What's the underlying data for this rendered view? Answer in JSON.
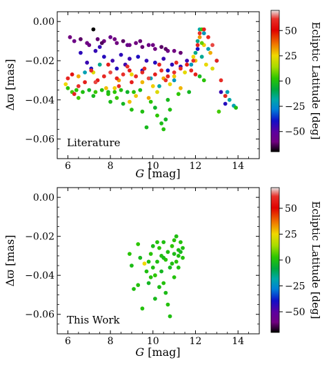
{
  "chart_data": [
    {
      "type": "scatter",
      "panel_label": "Literature",
      "xlabel": "G [mag]",
      "ylabel": "Δϖ [mas]",
      "xlim": [
        5.5,
        15
      ],
      "ylim": [
        -0.07,
        0.005
      ],
      "xticks": [
        6,
        8,
        10,
        12,
        14
      ],
      "yticks": [
        -0.06,
        -0.04,
        -0.02,
        0.0
      ],
      "xtick_labels": [
        "6",
        "8",
        "10",
        "12",
        "14"
      ],
      "ytick_labels": [
        "−0.06",
        "−0.04",
        "−0.02",
        "0.00"
      ],
      "colorbar": {
        "label": "Ecliptic Latitude [deg]",
        "range": [
          -70,
          70
        ],
        "ticks": [
          50,
          25,
          0,
          -25,
          -50
        ],
        "tick_labels": [
          "50",
          "25",
          "0",
          "−25",
          "−50"
        ]
      },
      "points": [
        [
          6.1,
          -0.008,
          -60
        ],
        [
          6.3,
          -0.01,
          -58
        ],
        [
          6.6,
          -0.009,
          -62
        ],
        [
          6.9,
          -0.011,
          -59
        ],
        [
          7.2,
          -0.004,
          -70
        ],
        [
          7.4,
          -0.009,
          -61
        ],
        [
          7.7,
          -0.01,
          -60
        ],
        [
          8.0,
          -0.008,
          -57
        ],
        [
          8.3,
          -0.011,
          -60
        ],
        [
          8.6,
          -0.01,
          -62
        ],
        [
          8.9,
          -0.012,
          -59
        ],
        [
          9.2,
          -0.011,
          -60
        ],
        [
          9.5,
          -0.013,
          -61
        ],
        [
          9.8,
          -0.012,
          -58
        ],
        [
          10.1,
          -0.014,
          -60
        ],
        [
          10.4,
          -0.013,
          -62
        ],
        [
          10.7,
          -0.015,
          -59
        ],
        [
          11.0,
          -0.015,
          -60
        ],
        [
          11.3,
          -0.016,
          -61
        ],
        [
          7.0,
          -0.012,
          -58
        ],
        [
          7.6,
          -0.011,
          -63
        ],
        [
          8.2,
          -0.009,
          -60
        ],
        [
          8.8,
          -0.012,
          -57
        ],
        [
          9.4,
          -0.01,
          -61
        ],
        [
          10.0,
          -0.012,
          -59
        ],
        [
          10.6,
          -0.014,
          -62
        ],
        [
          6.6,
          -0.016,
          -43
        ],
        [
          6.9,
          -0.021,
          -45
        ],
        [
          7.3,
          -0.015,
          -44
        ],
        [
          7.7,
          -0.018,
          -42
        ],
        [
          8.1,
          -0.02,
          -46
        ],
        [
          8.5,
          -0.017,
          -43
        ],
        [
          8.9,
          -0.019,
          -45
        ],
        [
          9.3,
          -0.018,
          -41
        ],
        [
          9.7,
          -0.02,
          -44
        ],
        [
          10.1,
          -0.021,
          -42
        ],
        [
          10.5,
          -0.019,
          -45
        ],
        [
          10.9,
          -0.022,
          -43
        ],
        [
          11.3,
          -0.023,
          -44
        ],
        [
          11.6,
          -0.02,
          -46
        ],
        [
          7.1,
          -0.024,
          -40
        ],
        [
          8.3,
          -0.024,
          -42
        ],
        [
          9.5,
          -0.025,
          -41
        ],
        [
          10.7,
          -0.025,
          -40
        ],
        [
          7.5,
          -0.013,
          -44
        ],
        [
          8.7,
          -0.022,
          -46
        ],
        [
          12.1,
          -0.014,
          -40
        ],
        [
          13.2,
          -0.036,
          -45
        ],
        [
          13.4,
          -0.042,
          -42
        ],
        [
          6.8,
          -0.026,
          -20
        ],
        [
          12.2,
          -0.004,
          -18
        ],
        [
          12.4,
          -0.006,
          -22
        ],
        [
          12.1,
          -0.01,
          -15
        ],
        [
          12.6,
          -0.014,
          -20
        ],
        [
          13.0,
          -0.02,
          -25
        ],
        [
          13.5,
          -0.036,
          -20
        ],
        [
          13.6,
          -0.04,
          -18
        ],
        [
          13.8,
          -0.043,
          -20
        ],
        [
          12.0,
          -0.016,
          -15
        ],
        [
          11.8,
          -0.022,
          -22
        ],
        [
          7.5,
          -0.022,
          -15
        ],
        [
          9.9,
          -0.029,
          -20
        ],
        [
          10.3,
          -0.033,
          -18
        ],
        [
          11.0,
          -0.03,
          -22
        ],
        [
          12.3,
          -0.018,
          -16
        ],
        [
          5.9,
          -0.032,
          25
        ],
        [
          6.5,
          -0.028,
          30
        ],
        [
          7.2,
          -0.026,
          22
        ],
        [
          7.8,
          -0.034,
          28
        ],
        [
          8.4,
          -0.03,
          32
        ],
        [
          9.0,
          -0.027,
          24
        ],
        [
          9.5,
          -0.031,
          29
        ],
        [
          10.0,
          -0.033,
          26
        ],
        [
          10.5,
          -0.029,
          31
        ],
        [
          11.0,
          -0.028,
          27
        ],
        [
          11.5,
          -0.026,
          23
        ],
        [
          12.0,
          -0.02,
          28
        ],
        [
          12.2,
          -0.008,
          33
        ],
        [
          12.4,
          -0.012,
          26
        ],
        [
          12.7,
          -0.016,
          30
        ],
        [
          12.5,
          -0.022,
          24
        ],
        [
          9.2,
          -0.038,
          27
        ],
        [
          10.2,
          -0.036,
          22
        ],
        [
          11.3,
          -0.034,
          29
        ],
        [
          11.9,
          -0.018,
          25
        ],
        [
          8.9,
          -0.041,
          28
        ],
        [
          9.8,
          -0.039,
          31
        ],
        [
          10.8,
          -0.032,
          24
        ],
        [
          12.8,
          -0.024,
          22
        ],
        [
          8.2,
          -0.034,
          26
        ],
        [
          6.2,
          -0.036,
          5
        ],
        [
          6.4,
          -0.035,
          2
        ],
        [
          6.7,
          -0.036,
          0
        ],
        [
          7.0,
          -0.035,
          -3
        ],
        [
          7.3,
          -0.036,
          4
        ],
        [
          7.6,
          -0.035,
          1
        ],
        [
          7.9,
          -0.036,
          -2
        ],
        [
          8.2,
          -0.036,
          3
        ],
        [
          8.5,
          -0.035,
          0
        ],
        [
          8.8,
          -0.036,
          -4
        ],
        [
          9.1,
          -0.036,
          2
        ],
        [
          9.4,
          -0.035,
          -1
        ],
        [
          6.5,
          -0.039,
          5
        ],
        [
          7.2,
          -0.038,
          -2
        ],
        [
          7.9,
          -0.037,
          1
        ],
        [
          8.6,
          -0.042,
          -3
        ],
        [
          9.0,
          -0.045,
          0
        ],
        [
          9.7,
          -0.054,
          -2
        ],
        [
          10.2,
          -0.048,
          3
        ],
        [
          10.4,
          -0.052,
          -1
        ],
        [
          10.5,
          -0.055,
          1
        ],
        [
          10.1,
          -0.044,
          -4
        ],
        [
          9.9,
          -0.041,
          2
        ],
        [
          9.5,
          -0.046,
          0
        ],
        [
          10.7,
          -0.04,
          -2
        ],
        [
          11.2,
          -0.037,
          3
        ],
        [
          6.0,
          -0.034,
          2
        ],
        [
          8.0,
          -0.041,
          -1
        ],
        [
          8.3,
          -0.039,
          4
        ],
        [
          10.8,
          -0.045,
          0
        ],
        [
          11.7,
          -0.036,
          -3
        ],
        [
          12.4,
          -0.03,
          2
        ],
        [
          12.2,
          -0.028,
          -2
        ],
        [
          12.3,
          -0.004,
          4
        ],
        [
          12.3,
          -0.011,
          8
        ],
        [
          13.1,
          -0.046,
          5
        ],
        [
          13.4,
          -0.038,
          3
        ],
        [
          13.9,
          -0.044,
          0
        ],
        [
          10.6,
          -0.05,
          -3
        ],
        [
          6.0,
          -0.029,
          60
        ],
        [
          6.2,
          -0.027,
          55
        ],
        [
          6.5,
          -0.033,
          62
        ],
        [
          6.8,
          -0.031,
          58
        ],
        [
          7.1,
          -0.025,
          61
        ],
        [
          7.4,
          -0.03,
          57
        ],
        [
          7.7,
          -0.028,
          60
        ],
        [
          8.0,
          -0.026,
          63
        ],
        [
          8.3,
          -0.029,
          59
        ],
        [
          8.6,
          -0.027,
          62
        ],
        [
          8.9,
          -0.025,
          58
        ],
        [
          9.2,
          -0.028,
          61
        ],
        [
          9.5,
          -0.026,
          60
        ],
        [
          9.8,
          -0.029,
          63
        ],
        [
          10.1,
          -0.027,
          58
        ],
        [
          10.4,
          -0.025,
          61
        ],
        [
          10.7,
          -0.028,
          59
        ],
        [
          11.0,
          -0.026,
          62
        ],
        [
          11.3,
          -0.024,
          60
        ],
        [
          11.6,
          -0.022,
          57
        ],
        [
          11.9,
          -0.02,
          61
        ],
        [
          12.1,
          -0.012,
          59
        ],
        [
          12.2,
          -0.006,
          62
        ],
        [
          12.4,
          -0.004,
          58
        ],
        [
          12.6,
          -0.008,
          60
        ],
        [
          12.8,
          -0.012,
          63
        ],
        [
          13.0,
          -0.02,
          59
        ],
        [
          13.2,
          -0.03,
          61
        ],
        [
          13.4,
          -0.038,
          60
        ],
        [
          7.9,
          -0.022,
          58
        ],
        [
          8.8,
          -0.023,
          62
        ],
        [
          9.6,
          -0.024,
          60
        ],
        [
          10.3,
          -0.022,
          59
        ],
        [
          11.1,
          -0.021,
          61
        ],
        [
          7.3,
          -0.031,
          63
        ],
        [
          9.0,
          -0.031,
          58
        ],
        [
          10.6,
          -0.03,
          62
        ],
        [
          11.8,
          -0.025,
          60
        ],
        [
          6.3,
          -0.037,
          59
        ],
        [
          8.4,
          -0.033,
          61
        ],
        [
          12.0,
          -0.027,
          58
        ]
      ]
    },
    {
      "type": "scatter",
      "panel_label": "This Work",
      "xlabel": "G [mag]",
      "ylabel": "Δϖ [mas]",
      "xlim": [
        5.5,
        15
      ],
      "ylim": [
        -0.07,
        0.005
      ],
      "xticks": [
        6,
        8,
        10,
        12,
        14
      ],
      "yticks": [
        -0.06,
        -0.04,
        -0.02,
        0.0
      ],
      "xtick_labels": [
        "6",
        "8",
        "10",
        "12",
        "14"
      ],
      "ytick_labels": [
        "−0.06",
        "−0.04",
        "−0.02",
        "0.00"
      ],
      "colorbar": {
        "label": "Ecliptic Latitude [deg]",
        "range": [
          -70,
          70
        ],
        "ticks": [
          50,
          25,
          0,
          -25,
          -50
        ],
        "tick_labels": [
          "50",
          "25",
          "0",
          "−25",
          "−50"
        ]
      },
      "points": [
        [
          8.9,
          -0.029,
          2
        ],
        [
          9.0,
          -0.035,
          -1
        ],
        [
          9.1,
          -0.047,
          0
        ],
        [
          9.3,
          -0.024,
          3
        ],
        [
          9.4,
          -0.031,
          -2
        ],
        [
          9.5,
          -0.057,
          1
        ],
        [
          9.6,
          -0.034,
          25
        ],
        [
          9.7,
          -0.038,
          0
        ],
        [
          9.8,
          -0.044,
          -3
        ],
        [
          9.9,
          -0.029,
          2
        ],
        [
          9.9,
          -0.041,
          1
        ],
        [
          10.0,
          -0.025,
          -1
        ],
        [
          10.0,
          -0.036,
          0
        ],
        [
          10.1,
          -0.04,
          3
        ],
        [
          10.1,
          -0.052,
          -2
        ],
        [
          10.2,
          -0.023,
          1
        ],
        [
          10.2,
          -0.033,
          0
        ],
        [
          10.3,
          -0.046,
          -1
        ],
        [
          10.3,
          -0.026,
          2
        ],
        [
          10.4,
          -0.03,
          0
        ],
        [
          10.4,
          -0.038,
          -3
        ],
        [
          10.5,
          -0.044,
          1
        ],
        [
          10.5,
          -0.023,
          0
        ],
        [
          10.6,
          -0.032,
          2
        ],
        [
          10.6,
          -0.049,
          -1
        ],
        [
          10.7,
          -0.028,
          0
        ],
        [
          10.7,
          -0.055,
          1
        ],
        [
          10.8,
          -0.036,
          -2
        ],
        [
          10.8,
          -0.061,
          0
        ],
        [
          10.9,
          -0.025,
          3
        ],
        [
          10.9,
          -0.034,
          0
        ],
        [
          11.0,
          -0.029,
          -1
        ],
        [
          11.0,
          -0.041,
          1
        ],
        [
          11.1,
          -0.02,
          0
        ],
        [
          11.1,
          -0.033,
          2
        ],
        [
          11.2,
          -0.027,
          -1
        ],
        [
          11.2,
          -0.036,
          0
        ],
        [
          11.3,
          -0.023,
          1
        ],
        [
          11.3,
          -0.028,
          -2
        ],
        [
          11.4,
          -0.026,
          0
        ],
        [
          11.4,
          -0.031,
          1
        ],
        [
          11.2,
          -0.03,
          0
        ],
        [
          11.0,
          -0.022,
          2
        ],
        [
          10.5,
          -0.031,
          -1
        ],
        [
          9.8,
          -0.033,
          0
        ],
        [
          9.3,
          -0.045,
          1
        ]
      ]
    }
  ]
}
